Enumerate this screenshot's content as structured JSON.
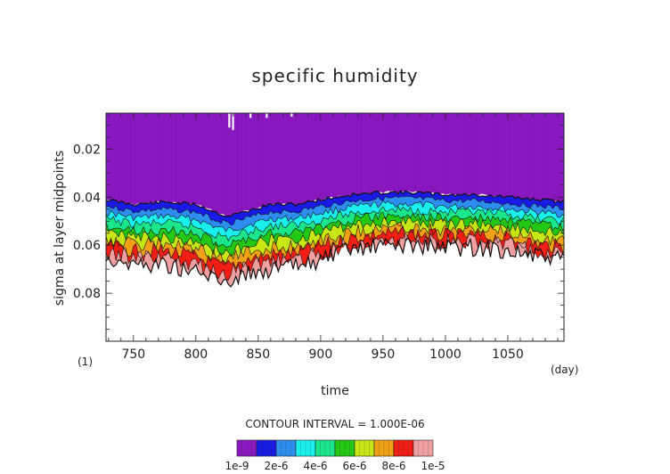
{
  "chart_data": {
    "type": "heatmap",
    "title": "specific humidity",
    "xlabel": "time",
    "ylabel": "sigma at layer midpoints",
    "x_unit": "(day)",
    "y_unit": "(1)",
    "xlim": [
      728,
      1095
    ],
    "ylim": [
      0.005,
      0.1
    ],
    "y_inverted": true,
    "x_ticks": [
      750,
      800,
      850,
      900,
      950,
      1000,
      1050
    ],
    "y_ticks": [
      0.02,
      0.04,
      0.06,
      0.08
    ],
    "contour_interval_label": "CONTOUR INTERVAL = 1.000E-06",
    "colorbar": {
      "levels": [
        "1e-9",
        "1e-6",
        "2e-6",
        "3e-6",
        "4e-6",
        "5e-6",
        "6e-6",
        "7e-6",
        "8e-6",
        "9e-6",
        "1e-5"
      ],
      "tick_labels": [
        "1e-9",
        "2e-6",
        "4e-6",
        "6e-6",
        "8e-6",
        "1e-5"
      ],
      "colors": [
        "#8a18c0",
        "#1a1ae6",
        "#2e8ef0",
        "#19f0ee",
        "#1ae68c",
        "#22c814",
        "#c8e614",
        "#f0a014",
        "#f01e14",
        "#f0a0a0"
      ]
    },
    "contour_boundaries": {
      "x": [
        728,
        750,
        775,
        800,
        815,
        825,
        840,
        860,
        880,
        900,
        925,
        950,
        975,
        1000,
        1025,
        1050,
        1075,
        1095
      ],
      "upper_sigma_1e_9": [
        0.041,
        0.043,
        0.042,
        0.043,
        0.046,
        0.048,
        0.046,
        0.043,
        0.043,
        0.041,
        0.039,
        0.038,
        0.038,
        0.039,
        0.039,
        0.04,
        0.041,
        0.042
      ],
      "lower_sigma_1e_9": [
        0.065,
        0.068,
        0.068,
        0.071,
        0.074,
        0.075,
        0.072,
        0.07,
        0.069,
        0.066,
        0.062,
        0.06,
        0.06,
        0.061,
        0.061,
        0.062,
        0.065,
        0.066
      ]
    }
  }
}
